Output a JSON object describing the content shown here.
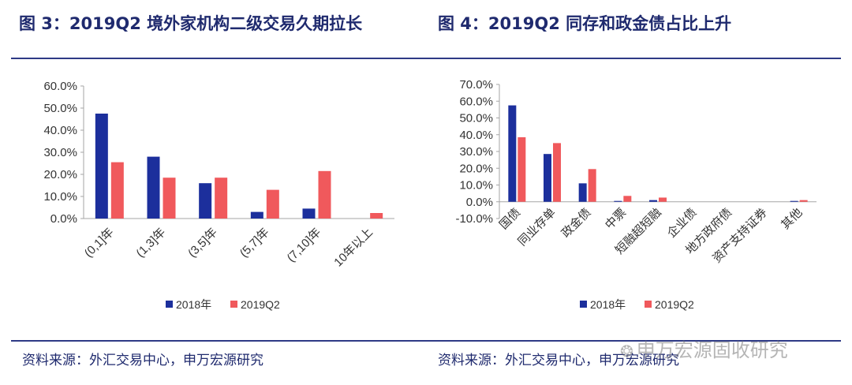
{
  "header": {
    "left_title": "图 3：2019Q2 境外家机构二级交易久期拉长",
    "right_title": "图 4：2019Q2 同存和政金债占比上升"
  },
  "footer": {
    "left_source": "资料来源：外汇交易中心，申万宏源研究",
    "right_source": "资料来源：外汇交易中心，申万宏源研究",
    "watermark": "申万宏源固收研究"
  },
  "colors": {
    "series_2018": "#1c2f9c",
    "series_2019": "#f0595c",
    "title": "#1f2a6e",
    "axis": "#a6a6a6"
  },
  "chart_data": [
    {
      "type": "bar",
      "categories": [
        "(0,1]年",
        "(1,3]年",
        "(3,5]年",
        "(5,7]年",
        "(7,10]年",
        "10年以上"
      ],
      "series": [
        {
          "name": "2018年",
          "values": [
            47.5,
            28.0,
            16.0,
            3.0,
            4.5,
            0.0
          ]
        },
        {
          "name": "2019Q2",
          "values": [
            25.5,
            18.5,
            18.5,
            13.0,
            21.5,
            2.5
          ]
        }
      ],
      "ylim": [
        0,
        60
      ],
      "yticks": [
        0,
        10,
        20,
        30,
        40,
        50,
        60
      ],
      "ytick_labels": [
        "0.0%",
        "10.0%",
        "20.0%",
        "30.0%",
        "40.0%",
        "50.0%",
        "60.0%"
      ],
      "legend": [
        "2018年",
        "2019Q2"
      ],
      "legend_position": "bottom"
    },
    {
      "type": "bar",
      "categories": [
        "国债",
        "同业存单",
        "政金债",
        "中票",
        "短融超短融",
        "企业债",
        "地方政府债",
        "资产支持证券",
        "其他"
      ],
      "series": [
        {
          "name": "2018年",
          "values": [
            57.5,
            28.5,
            11.0,
            0.5,
            1.0,
            0.0,
            0.0,
            0.0,
            0.5
          ]
        },
        {
          "name": "2019Q2",
          "values": [
            38.5,
            35.0,
            19.5,
            3.5,
            2.5,
            0.0,
            0.0,
            0.0,
            1.0
          ]
        }
      ],
      "ylim": [
        -10,
        70
      ],
      "yticks": [
        -10,
        0,
        10,
        20,
        30,
        40,
        50,
        60,
        70
      ],
      "ytick_labels": [
        "-10.0%",
        "0.0%",
        "10.0%",
        "20.0%",
        "30.0%",
        "40.0%",
        "50.0%",
        "60.0%",
        "70.0%"
      ],
      "legend": [
        "2018年",
        "2019Q2"
      ],
      "legend_position": "bottom"
    }
  ]
}
